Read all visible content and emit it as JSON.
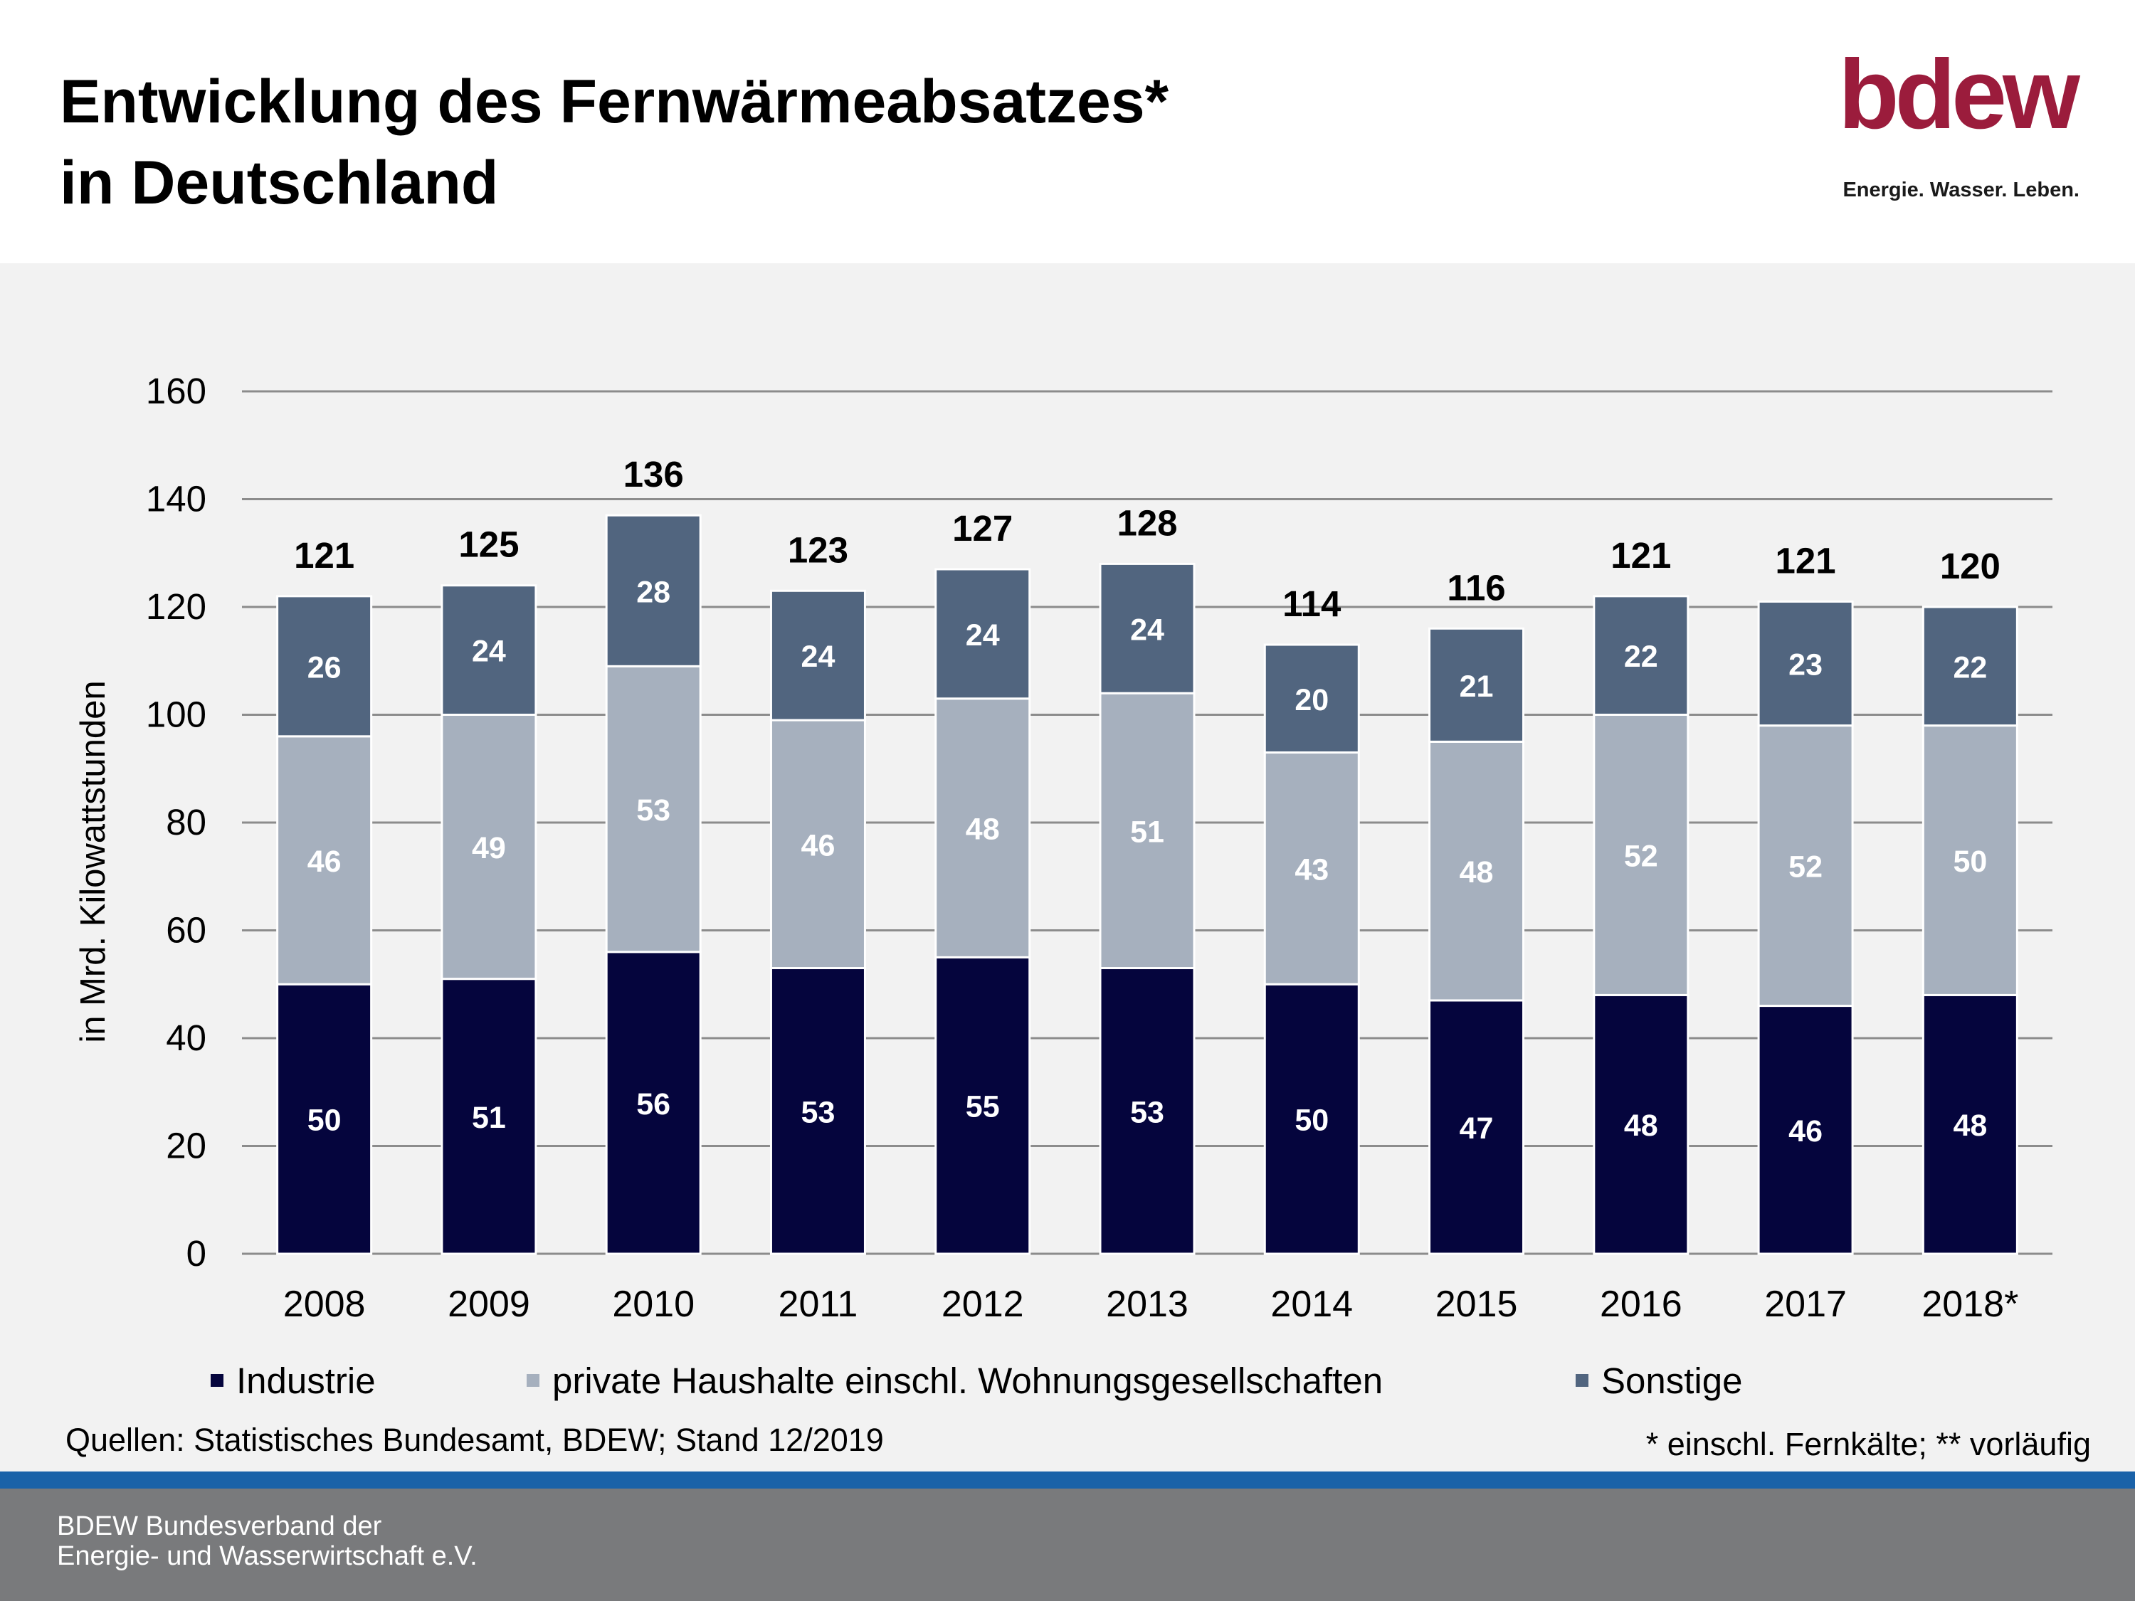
{
  "header": {
    "title_line1": "Entwicklung des Fernwärmeabsatzes*",
    "title_line2": "in Deutschland"
  },
  "logo": {
    "wordmark": "bdew",
    "tagline": "Energie. Wasser. Leben.",
    "color": "#9b1c3c"
  },
  "chart_data": {
    "type": "bar",
    "stacked": true,
    "categories": [
      "2008",
      "2009",
      "2010",
      "2011",
      "2012",
      "2013",
      "2014",
      "2015",
      "2016",
      "2017",
      "2018*"
    ],
    "series": [
      {
        "name": "Industrie",
        "color": "#05053d",
        "values": [
          50,
          51,
          56,
          53,
          55,
          53,
          50,
          47,
          48,
          46,
          48
        ]
      },
      {
        "name": "private Haushalte einschl. Wohnungsgesellschaften",
        "color": "#a6b0be",
        "values": [
          46,
          49,
          53,
          46,
          48,
          51,
          43,
          48,
          52,
          52,
          50
        ]
      },
      {
        "name": "Sonstige",
        "color": "#51657f",
        "values": [
          26,
          24,
          28,
          24,
          24,
          24,
          20,
          21,
          22,
          23,
          22
        ]
      }
    ],
    "totals": [
      121,
      125,
      136,
      123,
      127,
      128,
      114,
      116,
      121,
      121,
      120
    ],
    "ylabel": "in Mrd. Kilowattstunden",
    "ylim": [
      0,
      160
    ],
    "yticks": [
      0,
      20,
      40,
      60,
      80,
      100,
      120,
      140,
      160
    ],
    "grid": true,
    "legend_position": "bottom"
  },
  "source": "Quellen:  Statistisches Bundesamt, BDEW; Stand 12/2019",
  "footnote": "* einschl. Fernkälte;  ** vorläufig",
  "footer": {
    "line1": "BDEW Bundesverband der",
    "line2": "Energie- und Wasserwirtschaft e.V."
  }
}
